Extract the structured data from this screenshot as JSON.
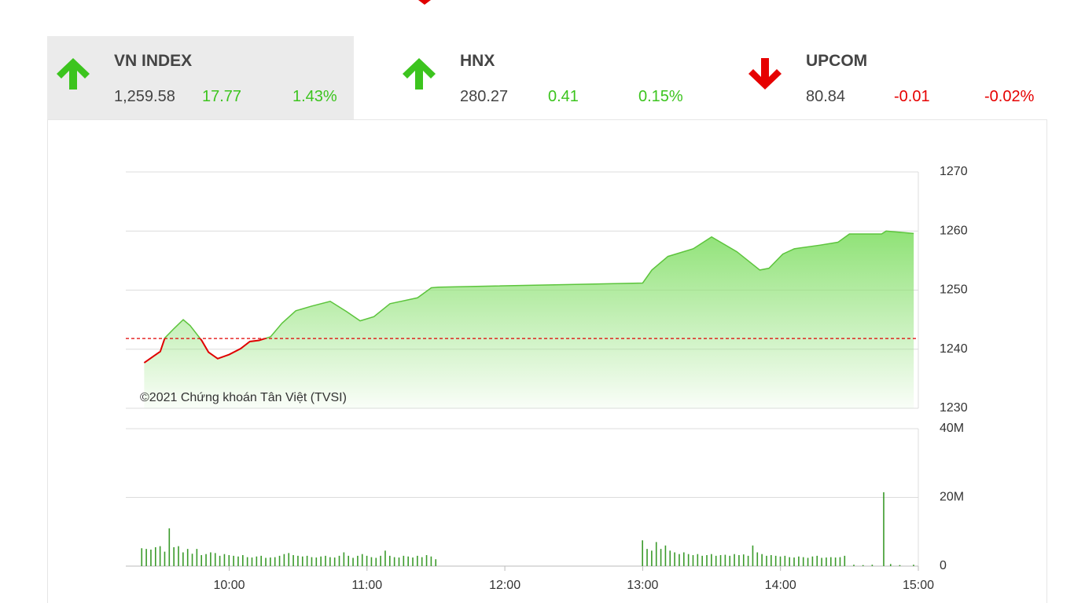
{
  "tabs": [
    {
      "name": "VN INDEX",
      "value": "1,259.58",
      "change": "17.77",
      "percent": "1.43%",
      "direction": "up"
    },
    {
      "name": "HNX",
      "value": "280.27",
      "change": "0.41",
      "percent": "0.15%",
      "direction": "up"
    },
    {
      "name": "UPCOM",
      "value": "80.84",
      "change": "-0.01",
      "percent": "-0.02%",
      "direction": "down"
    }
  ],
  "chart_data": [
    {
      "type": "area",
      "watermark": "©2021 Chứng khoán Tân Việt (TVSI)",
      "x": [
        "09:23",
        "09:27",
        "09:30",
        "09:32",
        "09:36",
        "09:40",
        "09:43",
        "09:48",
        "09:51",
        "09:55",
        "10:00",
        "10:05",
        "10:09",
        "10:13",
        "10:18",
        "10:23",
        "10:29",
        "10:36",
        "10:44",
        "10:51",
        "10:57",
        "11:03",
        "11:10",
        "11:22",
        "11:28",
        "11:31",
        "13:00",
        "13:04",
        "13:11",
        "13:22",
        "13:30",
        "13:41",
        "13:51",
        "13:55",
        "14:01",
        "14:06",
        "14:17",
        "14:25",
        "14:30",
        "14:44",
        "14:46",
        "14:58"
      ],
      "values": [
        1237.7,
        1238.8,
        1239.6,
        1241.9,
        1243.5,
        1245.0,
        1244.0,
        1241.5,
        1239.5,
        1238.4,
        1239.1,
        1240.1,
        1241.3,
        1241.5,
        1242.1,
        1244.4,
        1246.5,
        1247.3,
        1248.1,
        1246.4,
        1244.8,
        1245.5,
        1247.7,
        1248.7,
        1250.4,
        1250.5,
        1251.2,
        1253.4,
        1255.7,
        1257.0,
        1259.0,
        1256.5,
        1253.4,
        1253.7,
        1256.1,
        1257.0,
        1257.6,
        1258.1,
        1259.5,
        1259.5,
        1260.0,
        1259.58
      ],
      "reference_line": 1241.81,
      "color": "#8fe276",
      "line_color": "#5cc43c",
      "below_color": "#e00000",
      "xlim": [
        "09:15",
        "15:00"
      ],
      "ylim": [
        1230,
        1270
      ],
      "yticks": [
        1230,
        1240,
        1250,
        1260,
        1270
      ],
      "grid": true
    },
    {
      "type": "bar",
      "color": "#3a9a2a",
      "x": [
        "09:22",
        "09:24",
        "09:26",
        "09:28",
        "09:30",
        "09:32",
        "09:34",
        "09:36",
        "09:38",
        "09:40",
        "09:42",
        "09:44",
        "09:46",
        "09:48",
        "09:50",
        "09:52",
        "09:54",
        "09:56",
        "09:58",
        "10:00",
        "10:02",
        "10:04",
        "10:06",
        "10:08",
        "10:10",
        "10:12",
        "10:14",
        "10:16",
        "10:18",
        "10:20",
        "10:22",
        "10:24",
        "10:26",
        "10:28",
        "10:30",
        "10:32",
        "10:34",
        "10:36",
        "10:38",
        "10:40",
        "10:42",
        "10:44",
        "10:46",
        "10:48",
        "10:50",
        "10:52",
        "10:54",
        "10:56",
        "10:58",
        "11:00",
        "11:02",
        "11:04",
        "11:06",
        "11:08",
        "11:10",
        "11:12",
        "11:14",
        "11:16",
        "11:18",
        "11:20",
        "11:22",
        "11:24",
        "11:26",
        "11:28",
        "11:30",
        "13:00",
        "13:02",
        "13:04",
        "13:06",
        "13:08",
        "13:10",
        "13:12",
        "13:14",
        "13:16",
        "13:18",
        "13:20",
        "13:22",
        "13:24",
        "13:26",
        "13:28",
        "13:30",
        "13:32",
        "13:34",
        "13:36",
        "13:38",
        "13:40",
        "13:42",
        "13:44",
        "13:46",
        "13:48",
        "13:50",
        "13:52",
        "13:54",
        "13:56",
        "13:58",
        "14:00",
        "14:02",
        "14:04",
        "14:06",
        "14:08",
        "14:10",
        "14:12",
        "14:14",
        "14:16",
        "14:18",
        "14:20",
        "14:22",
        "14:24",
        "14:26",
        "14:28",
        "14:32",
        "14:36",
        "14:40",
        "14:45",
        "14:48",
        "14:52",
        "14:58"
      ],
      "values": [
        5200000,
        5000000,
        4800000,
        5500000,
        5800000,
        4200000,
        11000000,
        5500000,
        5800000,
        4000000,
        5000000,
        3600000,
        5000000,
        3200000,
        3500000,
        4000000,
        3800000,
        3000000,
        3500000,
        3200000,
        3000000,
        2800000,
        3200000,
        2600000,
        2500000,
        2800000,
        3000000,
        2400000,
        2500000,
        2600000,
        3000000,
        3500000,
        3800000,
        3200000,
        3000000,
        2800000,
        3000000,
        2600000,
        2500000,
        2800000,
        3000000,
        2600000,
        2500000,
        3000000,
        4000000,
        3000000,
        2400000,
        3000000,
        3500000,
        3000000,
        2600000,
        2400000,
        3000000,
        4500000,
        3000000,
        2600000,
        2500000,
        3000000,
        2800000,
        2500000,
        3000000,
        2600000,
        3200000,
        2800000,
        2000000,
        7500000,
        5000000,
        4500000,
        7000000,
        5000000,
        6000000,
        4500000,
        4000000,
        3500000,
        4000000,
        3500000,
        3200000,
        3500000,
        3000000,
        3200000,
        3500000,
        3000000,
        3200000,
        3300000,
        3000000,
        3500000,
        3200000,
        3400000,
        3000000,
        6000000,
        4000000,
        3500000,
        3000000,
        3200000,
        3000000,
        2800000,
        3000000,
        2600000,
        2500000,
        2800000,
        2600000,
        2400000,
        2800000,
        3000000,
        2400000,
        2500000,
        2600000,
        2500000,
        2600000,
        3000000,
        400000,
        300000,
        400000,
        21500000,
        600000,
        300000,
        400000
      ],
      "xlim": [
        "09:15",
        "15:00"
      ],
      "xticks": [
        "10:00",
        "11:00",
        "12:00",
        "13:00",
        "14:00",
        "15:00"
      ],
      "ylim": [
        0,
        40000000
      ],
      "yticks": [
        0,
        {
          "value": 20000000,
          "label": "20M"
        },
        {
          "value": 40000000,
          "label": "40M"
        }
      ],
      "grid": true
    }
  ]
}
